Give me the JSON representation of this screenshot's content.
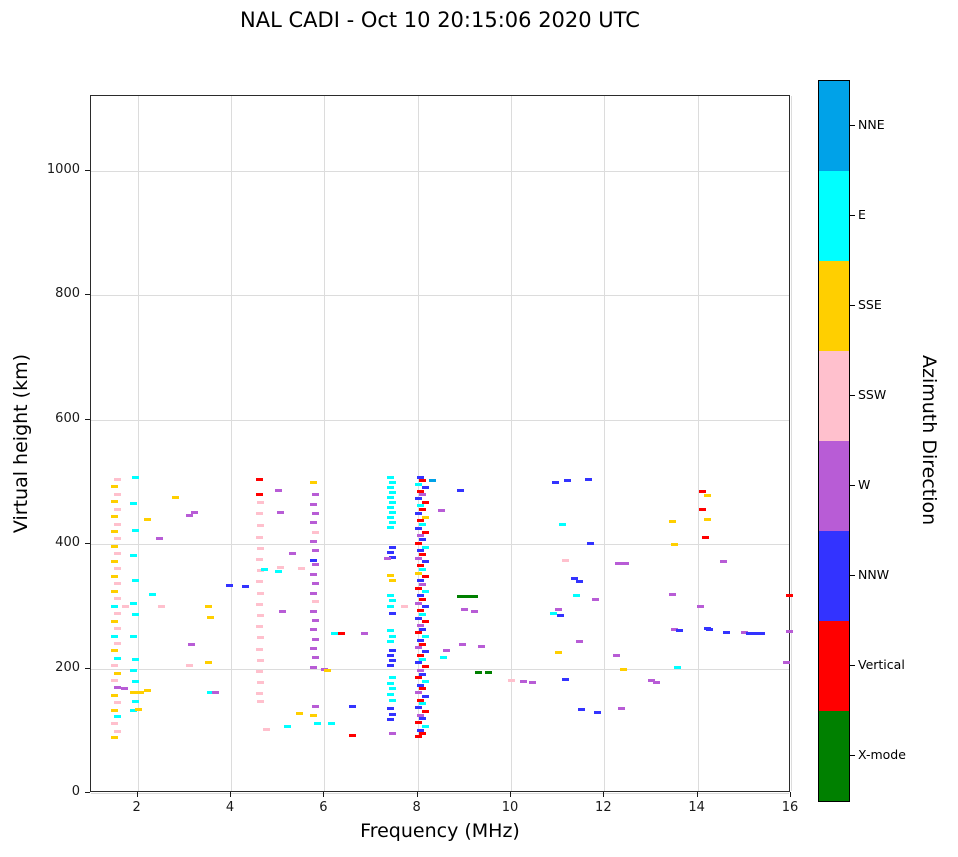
{
  "chart_data": {
    "type": "scatter",
    "title": "NAL CADI - Oct 10 20:15:06 2020 UTC",
    "xlabel": "Frequency (MHz)",
    "ylabel": "Virtual height (km)",
    "legend_title": "Azimuth Direction",
    "xlim": [
      1,
      16
    ],
    "ylim": [
      0,
      1120
    ],
    "x_ticks": [
      2,
      4,
      6,
      8,
      10,
      12,
      14,
      16
    ],
    "y_ticks": [
      0,
      200,
      400,
      600,
      800,
      1000
    ],
    "grid": true,
    "legend_position": "right-colorbar",
    "categories": [
      {
        "key": "NNE",
        "label": "NNE",
        "color": "#00a2e8"
      },
      {
        "key": "E",
        "label": "E",
        "color": "#00ffff"
      },
      {
        "key": "SSE",
        "label": "SSE",
        "color": "#ffcf00"
      },
      {
        "key": "SSW",
        "label": "SSW",
        "color": "#ffc0cd"
      },
      {
        "key": "W",
        "label": "W",
        "color": "#b85cd6"
      },
      {
        "key": "NNW",
        "label": "NNW",
        "color": "#3333ff"
      },
      {
        "key": "V",
        "label": "Vertical",
        "color": "#ff0000"
      },
      {
        "key": "X",
        "label": "X-mode",
        "color": "#008000"
      }
    ],
    "points": [
      [
        1.5,
        90,
        "SSE"
      ],
      [
        1.55,
        100,
        "SSW"
      ],
      [
        1.5,
        112,
        "SSW"
      ],
      [
        1.55,
        123,
        "E"
      ],
      [
        1.5,
        134,
        "SSE"
      ],
      [
        1.55,
        146,
        "SSW"
      ],
      [
        1.5,
        158,
        "SSE"
      ],
      [
        1.55,
        170,
        "W"
      ],
      [
        1.5,
        181,
        "SSW"
      ],
      [
        1.55,
        193,
        "SSE"
      ],
      [
        1.5,
        205,
        "SSW"
      ],
      [
        1.55,
        217,
        "E"
      ],
      [
        1.5,
        229,
        "SSE"
      ],
      [
        1.55,
        241,
        "SSW"
      ],
      [
        1.5,
        253,
        "E"
      ],
      [
        1.55,
        265,
        "SSW"
      ],
      [
        1.5,
        277,
        "SSE"
      ],
      [
        1.55,
        289,
        "SSW"
      ],
      [
        1.5,
        301,
        "E"
      ],
      [
        1.55,
        313,
        "SSW"
      ],
      [
        1.5,
        325,
        "SSE"
      ],
      [
        1.55,
        337,
        "SSW"
      ],
      [
        1.5,
        349,
        "SSE"
      ],
      [
        1.55,
        361,
        "SSW"
      ],
      [
        1.5,
        373,
        "SSE"
      ],
      [
        1.55,
        385,
        "SSW"
      ],
      [
        1.5,
        397,
        "SSE"
      ],
      [
        1.55,
        409,
        "SSW"
      ],
      [
        1.5,
        421,
        "SSE"
      ],
      [
        1.55,
        433,
        "SSW"
      ],
      [
        1.5,
        445,
        "SSE"
      ],
      [
        1.55,
        457,
        "SSW"
      ],
      [
        1.5,
        469,
        "SSE"
      ],
      [
        1.55,
        481,
        "SSW"
      ],
      [
        1.5,
        493,
        "SSE"
      ],
      [
        1.55,
        505,
        "SSW"
      ],
      [
        1.7,
        168,
        "W"
      ],
      [
        1.72,
        300,
        "SSW"
      ],
      [
        1.9,
        133,
        "E"
      ],
      [
        1.95,
        148,
        "E"
      ],
      [
        1.9,
        163,
        "SSE"
      ],
      [
        1.95,
        180,
        "E"
      ],
      [
        1.9,
        198,
        "E"
      ],
      [
        1.95,
        216,
        "E"
      ],
      [
        1.9,
        252,
        "E"
      ],
      [
        1.95,
        288,
        "E"
      ],
      [
        1.9,
        306,
        "E"
      ],
      [
        1.95,
        342,
        "E"
      ],
      [
        1.9,
        382,
        "E"
      ],
      [
        1.95,
        422,
        "E"
      ],
      [
        1.9,
        466,
        "E"
      ],
      [
        1.95,
        508,
        "E"
      ],
      [
        2.0,
        135,
        "SSE"
      ],
      [
        2.05,
        163,
        "SSE"
      ],
      [
        2.2,
        440,
        "SSE"
      ],
      [
        2.45,
        410,
        "W"
      ],
      [
        2.3,
        320,
        "E"
      ],
      [
        2.5,
        300,
        "SSW"
      ],
      [
        2.2,
        165,
        "SSE"
      ],
      [
        2.8,
        475,
        "SSE"
      ],
      [
        3.1,
        447,
        "W"
      ],
      [
        3.2,
        452,
        "W"
      ],
      [
        3.15,
        240,
        "W"
      ],
      [
        3.1,
        205,
        "SSW"
      ],
      [
        3.5,
        300,
        "SSE"
      ],
      [
        3.55,
        283,
        "SSE"
      ],
      [
        3.5,
        210,
        "SSE"
      ],
      [
        3.55,
        162,
        "E"
      ],
      [
        3.65,
        163,
        "W"
      ],
      [
        3.95,
        335,
        "NNW"
      ],
      [
        4.3,
        333,
        "NNW"
      ],
      [
        4.6,
        505,
        "V"
      ],
      [
        4.6,
        480,
        "V"
      ],
      [
        4.62,
        468,
        "SSW"
      ],
      [
        4.6,
        450,
        "SSW"
      ],
      [
        4.62,
        430,
        "SSW"
      ],
      [
        4.6,
        412,
        "SSW"
      ],
      [
        4.62,
        394,
        "SSW"
      ],
      [
        4.6,
        376,
        "SSW"
      ],
      [
        4.62,
        358,
        "SSW"
      ],
      [
        4.6,
        340,
        "SSW"
      ],
      [
        4.62,
        322,
        "SSW"
      ],
      [
        4.6,
        304,
        "SSW"
      ],
      [
        4.62,
        286,
        "SSW"
      ],
      [
        4.6,
        268,
        "SSW"
      ],
      [
        4.62,
        250,
        "SSW"
      ],
      [
        4.6,
        232,
        "SSW"
      ],
      [
        4.62,
        214,
        "SSW"
      ],
      [
        4.6,
        196,
        "SSW"
      ],
      [
        4.62,
        178,
        "SSW"
      ],
      [
        4.6,
        160,
        "SSW"
      ],
      [
        4.62,
        148,
        "SSW"
      ],
      [
        4.75,
        103,
        "SSW"
      ],
      [
        4.7,
        360,
        "E"
      ],
      [
        5.0,
        487,
        "W"
      ],
      [
        5.05,
        452,
        "W"
      ],
      [
        5.3,
        385,
        "W"
      ],
      [
        5.05,
        363,
        "SSW"
      ],
      [
        5.0,
        357,
        "E"
      ],
      [
        5.1,
        292,
        "W"
      ],
      [
        5.2,
        108,
        "E"
      ],
      [
        5.45,
        128,
        "SSE"
      ],
      [
        5.5,
        362,
        "SSW"
      ],
      [
        5.75,
        500,
        "SSE"
      ],
      [
        5.8,
        480,
        "W"
      ],
      [
        5.75,
        465,
        "W"
      ],
      [
        5.8,
        450,
        "W"
      ],
      [
        5.75,
        435,
        "W"
      ],
      [
        5.8,
        420,
        "SSW"
      ],
      [
        5.75,
        405,
        "W"
      ],
      [
        5.8,
        390,
        "W"
      ],
      [
        5.75,
        375,
        "NNW"
      ],
      [
        5.8,
        368,
        "W"
      ],
      [
        5.75,
        352,
        "W"
      ],
      [
        5.8,
        337,
        "W"
      ],
      [
        5.75,
        322,
        "W"
      ],
      [
        5.8,
        308,
        "SSW"
      ],
      [
        5.75,
        293,
        "W"
      ],
      [
        5.8,
        278,
        "W"
      ],
      [
        5.75,
        263,
        "W"
      ],
      [
        5.8,
        248,
        "W"
      ],
      [
        5.75,
        233,
        "W"
      ],
      [
        5.8,
        218,
        "W"
      ],
      [
        5.75,
        203,
        "W"
      ],
      [
        5.8,
        140,
        "W"
      ],
      [
        5.75,
        125,
        "SSE"
      ],
      [
        5.85,
        113,
        "E"
      ],
      [
        6.0,
        200,
        "W"
      ],
      [
        6.05,
        197,
        "SSE"
      ],
      [
        6.15,
        113,
        "E"
      ],
      [
        6.2,
        257,
        "E"
      ],
      [
        6.35,
        257,
        "V"
      ],
      [
        6.6,
        140,
        "NNW"
      ],
      [
        6.6,
        93,
        "V"
      ],
      [
        6.85,
        257,
        "W"
      ],
      [
        7.4,
        508,
        "E"
      ],
      [
        7.45,
        500,
        "E"
      ],
      [
        7.4,
        492,
        "E"
      ],
      [
        7.45,
        484,
        "E"
      ],
      [
        7.4,
        476,
        "E"
      ],
      [
        7.45,
        468,
        "E"
      ],
      [
        7.4,
        460,
        "E"
      ],
      [
        7.45,
        452,
        "E"
      ],
      [
        7.4,
        444,
        "E"
      ],
      [
        7.45,
        436,
        "E"
      ],
      [
        7.4,
        428,
        "E"
      ],
      [
        7.45,
        396,
        "NNW"
      ],
      [
        7.4,
        388,
        "NNW"
      ],
      [
        7.45,
        380,
        "NNW"
      ],
      [
        7.35,
        377,
        "W"
      ],
      [
        7.4,
        350,
        "SSE"
      ],
      [
        7.45,
        342,
        "SSE"
      ],
      [
        7.4,
        318,
        "E"
      ],
      [
        7.45,
        310,
        "E"
      ],
      [
        7.4,
        300,
        "E"
      ],
      [
        7.45,
        290,
        "NNW"
      ],
      [
        7.4,
        262,
        "E"
      ],
      [
        7.45,
        253,
        "E"
      ],
      [
        7.4,
        244,
        "E"
      ],
      [
        7.45,
        230,
        "NNW"
      ],
      [
        7.4,
        222,
        "NNW"
      ],
      [
        7.45,
        213,
        "NNW"
      ],
      [
        7.4,
        205,
        "NNW"
      ],
      [
        7.45,
        186,
        "E"
      ],
      [
        7.4,
        177,
        "E"
      ],
      [
        7.45,
        168,
        "E"
      ],
      [
        7.4,
        159,
        "E"
      ],
      [
        7.45,
        150,
        "E"
      ],
      [
        7.4,
        136,
        "NNW"
      ],
      [
        7.45,
        127,
        "NNW"
      ],
      [
        7.4,
        119,
        "NNW"
      ],
      [
        7.45,
        97,
        "W"
      ],
      [
        7.7,
        300,
        "SSW"
      ],
      [
        8.05,
        508,
        "NNW"
      ],
      [
        8.1,
        503,
        "V"
      ],
      [
        8.0,
        497,
        "E"
      ],
      [
        8.15,
        492,
        "NNW"
      ],
      [
        8.05,
        486,
        "V"
      ],
      [
        8.1,
        480,
        "W"
      ],
      [
        8.0,
        474,
        "NNW"
      ],
      [
        8.15,
        468,
        "V"
      ],
      [
        8.05,
        462,
        "E"
      ],
      [
        8.1,
        456,
        "V"
      ],
      [
        8.0,
        450,
        "NNW"
      ],
      [
        8.15,
        444,
        "SSE"
      ],
      [
        8.05,
        438,
        "V"
      ],
      [
        8.1,
        432,
        "E"
      ],
      [
        8.0,
        426,
        "NNW"
      ],
      [
        8.15,
        420,
        "V"
      ],
      [
        8.05,
        414,
        "W"
      ],
      [
        8.1,
        408,
        "NNW"
      ],
      [
        8.0,
        402,
        "V"
      ],
      [
        8.15,
        396,
        "E"
      ],
      [
        8.05,
        390,
        "NNW"
      ],
      [
        8.1,
        384,
        "V"
      ],
      [
        8.0,
        378,
        "W"
      ],
      [
        8.15,
        372,
        "NNW"
      ],
      [
        8.05,
        366,
        "V"
      ],
      [
        8.1,
        360,
        "E"
      ],
      [
        8.0,
        354,
        "SSE"
      ],
      [
        8.15,
        348,
        "V"
      ],
      [
        8.05,
        342,
        "NNW"
      ],
      [
        8.1,
        336,
        "W"
      ],
      [
        8.0,
        330,
        "V"
      ],
      [
        8.15,
        324,
        "E"
      ],
      [
        8.05,
        318,
        "NNW"
      ],
      [
        8.1,
        312,
        "V"
      ],
      [
        8.0,
        306,
        "W"
      ],
      [
        8.15,
        300,
        "NNW"
      ],
      [
        8.05,
        294,
        "V"
      ],
      [
        8.1,
        288,
        "E"
      ],
      [
        8.0,
        282,
        "NNW"
      ],
      [
        8.15,
        276,
        "V"
      ],
      [
        8.05,
        270,
        "W"
      ],
      [
        8.1,
        264,
        "NNW"
      ],
      [
        8.0,
        258,
        "V"
      ],
      [
        8.15,
        252,
        "E"
      ],
      [
        8.05,
        246,
        "NNW"
      ],
      [
        8.1,
        240,
        "V"
      ],
      [
        8.0,
        234,
        "W"
      ],
      [
        8.15,
        228,
        "NNW"
      ],
      [
        8.05,
        222,
        "V"
      ],
      [
        8.1,
        216,
        "E"
      ],
      [
        8.0,
        210,
        "NNW"
      ],
      [
        8.15,
        204,
        "V"
      ],
      [
        8.05,
        198,
        "W"
      ],
      [
        8.1,
        192,
        "NNW"
      ],
      [
        8.0,
        186,
        "V"
      ],
      [
        8.15,
        180,
        "E"
      ],
      [
        8.05,
        174,
        "NNW"
      ],
      [
        8.1,
        168,
        "V"
      ],
      [
        8.0,
        162,
        "W"
      ],
      [
        8.15,
        156,
        "NNW"
      ],
      [
        8.05,
        150,
        "V"
      ],
      [
        8.1,
        144,
        "E"
      ],
      [
        8.0,
        138,
        "NNW"
      ],
      [
        8.15,
        132,
        "V"
      ],
      [
        8.05,
        126,
        "W"
      ],
      [
        8.1,
        120,
        "NNW"
      ],
      [
        8.0,
        114,
        "V"
      ],
      [
        8.15,
        108,
        "E"
      ],
      [
        8.05,
        102,
        "NNW"
      ],
      [
        8.1,
        96,
        "V"
      ],
      [
        8.0,
        92,
        "V"
      ],
      [
        8.3,
        503,
        "NNE"
      ],
      [
        8.5,
        455,
        "W"
      ],
      [
        8.55,
        218,
        "E"
      ],
      [
        8.6,
        230,
        "W"
      ],
      [
        8.9,
        487,
        "NNW"
      ],
      [
        8.9,
        316,
        "X"
      ],
      [
        9.05,
        316,
        "X"
      ],
      [
        9.2,
        316,
        "X"
      ],
      [
        9.0,
        295,
        "W"
      ],
      [
        9.2,
        293,
        "W"
      ],
      [
        8.95,
        240,
        "W"
      ],
      [
        9.35,
        237,
        "W"
      ],
      [
        9.3,
        195,
        "X"
      ],
      [
        9.5,
        195,
        "X"
      ],
      [
        10.0,
        181,
        "SSW"
      ],
      [
        10.25,
        180,
        "W"
      ],
      [
        10.45,
        178,
        "W"
      ],
      [
        10.95,
        500,
        "NNW"
      ],
      [
        11.2,
        503,
        "NNW"
      ],
      [
        11.1,
        432,
        "E"
      ],
      [
        11.15,
        375,
        "SSW"
      ],
      [
        10.9,
        290,
        "E"
      ],
      [
        11.0,
        296,
        "W"
      ],
      [
        11.05,
        286,
        "NNW"
      ],
      [
        11.0,
        227,
        "SSE"
      ],
      [
        11.15,
        183,
        "NNW"
      ],
      [
        11.35,
        345,
        "NNW"
      ],
      [
        11.45,
        341,
        "NNW"
      ],
      [
        11.4,
        318,
        "E"
      ],
      [
        11.45,
        245,
        "W"
      ],
      [
        11.5,
        135,
        "NNW"
      ],
      [
        11.65,
        505,
        "NNW"
      ],
      [
        11.7,
        402,
        "NNW"
      ],
      [
        11.8,
        311,
        "W"
      ],
      [
        11.85,
        130,
        "NNW"
      ],
      [
        12.3,
        370,
        "W"
      ],
      [
        12.45,
        370,
        "W"
      ],
      [
        12.25,
        222,
        "W"
      ],
      [
        12.4,
        200,
        "SSE"
      ],
      [
        12.35,
        137,
        "W"
      ],
      [
        13.0,
        181,
        "W"
      ],
      [
        13.1,
        178,
        "W"
      ],
      [
        13.45,
        437,
        "SSE"
      ],
      [
        13.5,
        400,
        "SSE"
      ],
      [
        13.45,
        320,
        "W"
      ],
      [
        13.5,
        263,
        "W"
      ],
      [
        13.6,
        262,
        "NNW"
      ],
      [
        13.55,
        203,
        "E"
      ],
      [
        14.1,
        485,
        "V"
      ],
      [
        14.2,
        479,
        "SSE"
      ],
      [
        14.1,
        456,
        "V"
      ],
      [
        14.2,
        441,
        "SSE"
      ],
      [
        14.15,
        411,
        "V"
      ],
      [
        14.05,
        300,
        "W"
      ],
      [
        14.2,
        265,
        "NNW"
      ],
      [
        14.25,
        264,
        "NNW"
      ],
      [
        14.55,
        373,
        "W"
      ],
      [
        14.6,
        258,
        "NNW"
      ],
      [
        15.0,
        258,
        "W"
      ],
      [
        15.1,
        257,
        "NNW"
      ],
      [
        15.25,
        257,
        "NNW"
      ],
      [
        15.35,
        257,
        "NNW"
      ],
      [
        15.95,
        318,
        "V"
      ],
      [
        15.95,
        260,
        "W"
      ],
      [
        15.9,
        210,
        "W"
      ]
    ]
  }
}
